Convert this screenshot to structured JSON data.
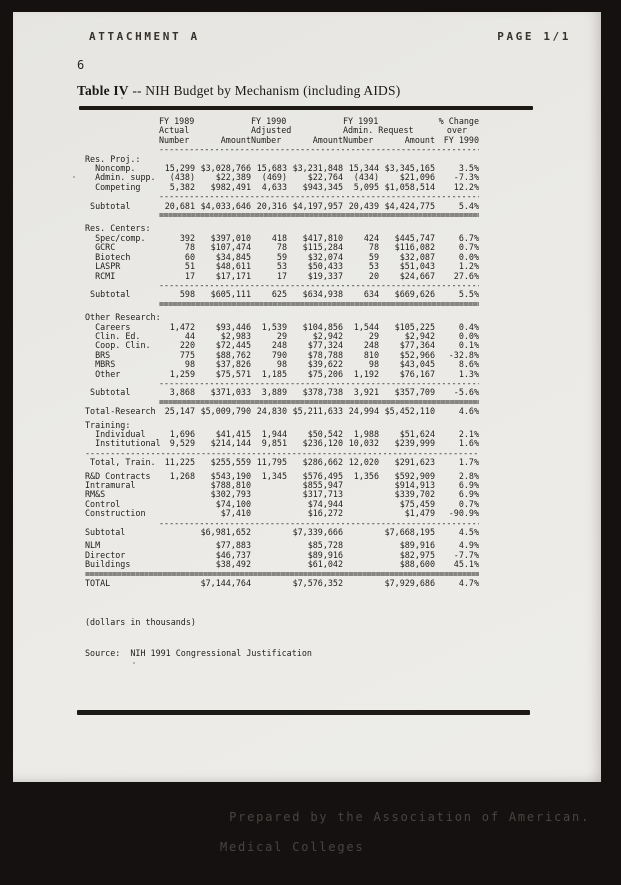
{
  "scan": {
    "header_left": "ATTACHMENT A",
    "header_right": "PAGE 1/1",
    "page_number": "6"
  },
  "title": {
    "bold": "Table IV",
    "rest": " -- NIH Budget by Mechanism (including AIDS)"
  },
  "table": {
    "col_groups": [
      "FY 1989",
      "FY 1990",
      "FY 1991",
      "% Change"
    ],
    "col_subgroups": [
      "Actual",
      "Adjusted",
      "Admin. Request",
      "over"
    ],
    "col_headers": [
      "Number",
      "Amount",
      "Number",
      "Amount",
      "Number",
      "Amount",
      "FY 1990"
    ],
    "rows": [
      {
        "type": "dash"
      },
      {
        "type": "sec",
        "label": "Res. Proj.:"
      },
      {
        "type": "row",
        "label": "  Noncomp.",
        "values": [
          "15,299",
          "$3,028,766",
          "15,683",
          "$3,231,848",
          "15,344",
          "$3,345,165",
          "3.5%"
        ]
      },
      {
        "type": "row",
        "label": "  Admin. supp.",
        "values": [
          "(438)",
          "$22,389",
          "(469)",
          "$22,764",
          "(434)",
          "$21,096",
          "-7.3%"
        ]
      },
      {
        "type": "row",
        "label": "  Competing",
        "values": [
          "5,382",
          "$982,491",
          "4,633",
          "$943,345",
          "5,095",
          "$1,058,514",
          "12.2%"
        ]
      },
      {
        "type": "dash"
      },
      {
        "type": "row",
        "label": " Subtotal",
        "values": [
          "20,681",
          "$4,033,646",
          "20,316",
          "$4,197,957",
          "20,439",
          "$4,424,775",
          "5.4%"
        ]
      },
      {
        "type": "dbl"
      },
      {
        "type": "blank"
      },
      {
        "type": "sec",
        "label": "Res. Centers:"
      },
      {
        "type": "row",
        "label": "  Spec/comp.",
        "values": [
          "392",
          "$397,010",
          "418",
          "$417,810",
          "424",
          "$445,747",
          "6.7%"
        ]
      },
      {
        "type": "row",
        "label": "  GCRC",
        "values": [
          "78",
          "$107,474",
          "78",
          "$115,284",
          "78",
          "$116,082",
          "0.7%"
        ]
      },
      {
        "type": "row",
        "label": "  Biotech",
        "values": [
          "60",
          "$34,845",
          "59",
          "$32,074",
          "59",
          "$32,087",
          "0.0%"
        ]
      },
      {
        "type": "row",
        "label": "  LASPR",
        "values": [
          "51",
          "$48,611",
          "53",
          "$50,433",
          "53",
          "$51,043",
          "1.2%"
        ]
      },
      {
        "type": "row",
        "label": "  RCMI",
        "values": [
          "17",
          "$17,171",
          "17",
          "$19,337",
          "20",
          "$24,667",
          "27.6%"
        ]
      },
      {
        "type": "dash"
      },
      {
        "type": "row",
        "label": " Subtotal",
        "values": [
          "598",
          "$605,111",
          "625",
          "$634,938",
          "634",
          "$669,626",
          "5.5%"
        ]
      },
      {
        "type": "dbl"
      },
      {
        "type": "blank"
      },
      {
        "type": "sec",
        "label": "Other Research:"
      },
      {
        "type": "row",
        "label": "  Careers",
        "values": [
          "1,472",
          "$93,446",
          "1,539",
          "$104,856",
          "1,544",
          "$105,225",
          "0.4%"
        ]
      },
      {
        "type": "row",
        "label": "  Clin. Ed.",
        "values": [
          "44",
          "$2,983",
          "29",
          "$2,942",
          "29",
          "$2,942",
          "0.0%"
        ]
      },
      {
        "type": "row",
        "label": "  Coop. Clin.",
        "values": [
          "220",
          "$72,445",
          "248",
          "$77,324",
          "248",
          "$77,364",
          "0.1%"
        ]
      },
      {
        "type": "row",
        "label": "  BRS",
        "values": [
          "775",
          "$88,762",
          "790",
          "$78,788",
          "810",
          "$52,966",
          "-32.8%"
        ]
      },
      {
        "type": "row",
        "label": "  MBRS",
        "values": [
          "98",
          "$37,826",
          "98",
          "$39,622",
          "98",
          "$43,045",
          "8.6%"
        ]
      },
      {
        "type": "row",
        "label": "  Other",
        "values": [
          "1,259",
          "$75,571",
          "1,185",
          "$75,206",
          "1,192",
          "$76,167",
          "1.3%"
        ]
      },
      {
        "type": "dash"
      },
      {
        "type": "row",
        "label": " Subtotal",
        "values": [
          "3,868",
          "$371,033",
          "3,889",
          "$378,738",
          "3,921",
          "$357,709",
          "-5.6%"
        ]
      },
      {
        "type": "dbl"
      },
      {
        "type": "row",
        "label": "Total-Research",
        "values": [
          "25,147",
          "$5,009,790",
          "24,830",
          "$5,211,633",
          "24,994",
          "$5,452,110",
          "4.6%"
        ]
      },
      {
        "type": "blank"
      },
      {
        "type": "sec",
        "label": "Training:"
      },
      {
        "type": "row",
        "label": "  Individual",
        "values": [
          "1,696",
          "$41,415",
          "1,944",
          "$50,542",
          "1,988",
          "$51,624",
          "2.1%"
        ]
      },
      {
        "type": "row",
        "label": "  Institutional",
        "values": [
          "9,529",
          "$214,144",
          "9,851",
          "$236,120",
          "10,032",
          "$239,999",
          "1.6%"
        ]
      },
      {
        "type": "dashf"
      },
      {
        "type": "row",
        "label": " Total, Train.",
        "values": [
          "11,225",
          "$255,559",
          "11,795",
          "$286,662",
          "12,020",
          "$291,623",
          "1.7%"
        ]
      },
      {
        "type": "blank"
      },
      {
        "type": "row",
        "label": "R&D Contracts",
        "values": [
          "1,268",
          "$543,190",
          "1,345",
          "$576,495",
          "1,356",
          "$592,909",
          "2.8%"
        ]
      },
      {
        "type": "row",
        "label": "Intramural",
        "values": [
          "",
          "$788,810",
          "",
          "$855,947",
          "",
          "$914,913",
          "6.9%"
        ]
      },
      {
        "type": "row",
        "label": "RM&S",
        "values": [
          "",
          "$302,793",
          "",
          "$317,713",
          "",
          "$339,702",
          "6.9%"
        ]
      },
      {
        "type": "row",
        "label": "Control",
        "values": [
          "",
          "$74,100",
          "",
          "$74,944",
          "",
          "$75,459",
          "0.7%"
        ]
      },
      {
        "type": "row",
        "label": "Construction",
        "values": [
          "",
          "$7,410",
          "",
          "$16,272",
          "",
          "$1,479",
          "-90.9%"
        ]
      },
      {
        "type": "dash"
      },
      {
        "type": "row",
        "label": "Subtotal",
        "values": [
          "",
          "$6,981,652",
          "",
          "$7,339,666",
          "",
          "$7,668,195",
          "4.5%"
        ]
      },
      {
        "type": "blank"
      },
      {
        "type": "row",
        "label": "NLM",
        "values": [
          "",
          "$77,883",
          "",
          "$85,728",
          "",
          "$89,916",
          "4.9%"
        ]
      },
      {
        "type": "row",
        "label": "Director",
        "values": [
          "",
          "$46,737",
          "",
          "$89,916",
          "",
          "$82,975",
          "-7.7%"
        ]
      },
      {
        "type": "row",
        "label": "Buildings",
        "values": [
          "",
          "$38,492",
          "",
          "$61,042",
          "",
          "$88,600",
          "45.1%"
        ]
      },
      {
        "type": "dblf"
      },
      {
        "type": "row",
        "label": "TOTAL",
        "values": [
          "",
          "$7,144,764",
          "",
          "$7,576,352",
          "",
          "$7,929,686",
          "4.7%"
        ]
      }
    ]
  },
  "footnotes": {
    "line1": "(dollars in thousands)",
    "line2": "Source:  NIH 1991 Congressional Justification"
  },
  "footer": {
    "line1": "Prepared by the Association of American.",
    "line2": "Medical Colleges"
  }
}
